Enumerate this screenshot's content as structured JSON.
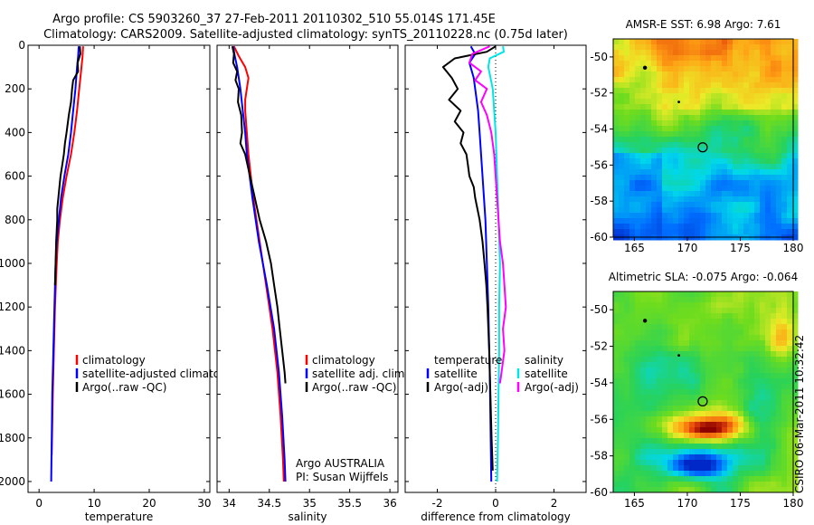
{
  "figure": {
    "title_line1": "Argo profile: CS 5903260_37 27-Feb-2011 20110302_510 55.014S 171.45E",
    "title_line2": "Climatology: CARS2009. Satellite-adjusted climatology: synTS_20110228.nc (0.75d later)",
    "stamp": "CSIRO 06-Mar-2011 10:32:42"
  },
  "colors": {
    "climatology": "#ff0000",
    "satellite": "#0000ff",
    "argo": "#000000",
    "sal_satellite": "#00e5e5",
    "sal_argo": "#ff00ff"
  },
  "chart_data": [
    {
      "type": "line",
      "id": "temperature",
      "xlabel": "temperature",
      "xlim": [
        -2,
        31
      ],
      "xticks": [
        0,
        10,
        20,
        30
      ],
      "ylim": [
        2050,
        0
      ],
      "yticks": [
        0,
        200,
        400,
        600,
        800,
        1000,
        1200,
        1400,
        1600,
        1800,
        2000
      ],
      "legend": [
        "climatology",
        "satellite-adjusted climatology",
        "Argo(..raw -QC)"
      ],
      "legend_position": "lower-center",
      "series": [
        {
          "name": "climatology",
          "color_key": "climatology",
          "depth": [
            5,
            50,
            100,
            200,
            300,
            400,
            500,
            600,
            700,
            800,
            900,
            1000,
            1200,
            1400,
            1600,
            1880
          ],
          "values": [
            8.0,
            7.9,
            7.7,
            7.3,
            6.9,
            6.4,
            5.8,
            5.0,
            4.3,
            3.8,
            3.4,
            3.2,
            2.9,
            2.7,
            2.5,
            2.3
          ]
        },
        {
          "name": "satellite-adjusted climatology",
          "color_key": "satellite",
          "depth": [
            5,
            50,
            100,
            200,
            300,
            400,
            500,
            600,
            700,
            800,
            900,
            1000,
            1200,
            1400,
            1600,
            2000
          ],
          "values": [
            7.2,
            7.1,
            6.9,
            6.6,
            6.2,
            5.8,
            5.3,
            4.6,
            4.0,
            3.6,
            3.2,
            3.0,
            2.8,
            2.6,
            2.4,
            2.2
          ]
        },
        {
          "name": "Argo(..raw -QC)",
          "color_key": "argo",
          "depth": [
            5,
            40,
            80,
            120,
            160,
            200,
            260,
            320,
            400,
            450,
            500,
            550,
            600,
            650,
            700,
            750,
            800,
            900,
            1000,
            1100
          ],
          "values": [
            7.4,
            7.5,
            7.0,
            7.1,
            6.2,
            6.0,
            5.8,
            5.4,
            5.0,
            4.7,
            4.5,
            4.2,
            3.9,
            3.7,
            3.5,
            3.3,
            3.3,
            3.1,
            3.0,
            2.9
          ]
        }
      ]
    },
    {
      "type": "line",
      "id": "salinity",
      "xlabel": "salinity",
      "xlim": [
        33.85,
        36.1
      ],
      "xticks": [
        34,
        34.5,
        35,
        35.5,
        36
      ],
      "xticklabels": [
        "34",
        "34.5",
        "35",
        "35.5",
        "36"
      ],
      "ylim": [
        2050,
        0
      ],
      "legend": [
        "climatology",
        "satellite adj. clim.",
        "Argo(..raw -QC)"
      ],
      "legend_position": "lower-right",
      "annotation": [
        "Argo AUSTRALIA",
        "PI: Susan Wijffels"
      ],
      "series": [
        {
          "name": "climatology",
          "color_key": "climatology",
          "depth": [
            5,
            50,
            100,
            150,
            200,
            250,
            300,
            400,
            500,
            700,
            900,
            1100,
            1300,
            1500,
            1700,
            1900,
            2000
          ],
          "values": [
            34.06,
            34.12,
            34.2,
            34.24,
            34.22,
            34.2,
            34.2,
            34.22,
            34.24,
            34.3,
            34.38,
            34.46,
            34.54,
            34.6,
            34.64,
            34.67,
            34.68
          ]
        },
        {
          "name": "satellite adj. clim.",
          "color_key": "satellite",
          "depth": [
            5,
            50,
            100,
            150,
            200,
            300,
            400,
            500,
            700,
            900,
            1100,
            1300,
            1500,
            1700,
            1900,
            2000
          ],
          "values": [
            34.05,
            34.07,
            34.1,
            34.12,
            34.14,
            34.17,
            34.2,
            34.22,
            34.29,
            34.37,
            34.47,
            34.56,
            34.62,
            34.66,
            34.69,
            34.7
          ]
        },
        {
          "name": "Argo(..raw -QC)",
          "color_key": "argo",
          "depth": [
            5,
            40,
            80,
            120,
            160,
            200,
            260,
            320,
            400,
            450,
            500,
            600,
            700,
            800,
            900,
            1000,
            1100,
            1200,
            1300,
            1400,
            1500,
            1550
          ],
          "values": [
            34.04,
            34.06,
            34.05,
            34.1,
            34.08,
            34.12,
            34.11,
            34.15,
            34.16,
            34.14,
            34.2,
            34.26,
            34.32,
            34.38,
            34.46,
            34.52,
            34.56,
            34.6,
            34.63,
            34.66,
            34.69,
            34.7
          ]
        }
      ]
    },
    {
      "type": "line",
      "id": "difference",
      "xlabel": "difference from climatology",
      "xlim": [
        -3.1,
        3.1
      ],
      "xticks": [
        -2,
        0,
        2
      ],
      "ylim": [
        2050,
        0
      ],
      "zero_line": true,
      "legend": [
        "temperature",
        "satellite",
        "Argo(-adj)",
        "salinity",
        "satellite",
        "Argo(-adj)"
      ],
      "legend_position": "lower",
      "series": [
        {
          "name": "temperature satellite",
          "color_key": "satellite",
          "depth": [
            5,
            40,
            80,
            150,
            200,
            300,
            400,
            500,
            600,
            700,
            800,
            1000,
            1200,
            1500,
            2000
          ],
          "values": [
            -0.85,
            -0.7,
            -0.9,
            -0.75,
            -0.7,
            -0.6,
            -0.55,
            -0.5,
            -0.45,
            -0.4,
            -0.35,
            -0.3,
            -0.25,
            -0.2,
            -0.15
          ]
        },
        {
          "name": "temperature Argo(-adj)",
          "color_key": "argo",
          "depth": [
            5,
            30,
            60,
            100,
            150,
            200,
            250,
            300,
            350,
            400,
            450,
            500,
            550,
            600,
            650,
            700,
            800,
            900,
            1000,
            1100,
            1200,
            1400,
            1600,
            1800,
            1950
          ],
          "values": [
            0.0,
            -0.3,
            -1.4,
            -1.8,
            -1.5,
            -1.3,
            -1.6,
            -1.2,
            -1.4,
            -1.1,
            -1.2,
            -1.0,
            -0.95,
            -0.9,
            -0.75,
            -0.7,
            -0.55,
            -0.45,
            -0.38,
            -0.32,
            -0.28,
            -0.22,
            -0.18,
            -0.14,
            -0.1
          ]
        },
        {
          "name": "salinity satellite",
          "color_key": "sal_satellite",
          "depth": [
            5,
            30,
            60,
            100,
            200,
            300,
            400,
            600,
            800,
            1000,
            1200,
            1400,
            1600,
            1800,
            2000
          ],
          "values": [
            0.25,
            0.28,
            -0.2,
            -0.25,
            -0.1,
            -0.05,
            0.0,
            0.05,
            0.1,
            0.15,
            0.12,
            0.12,
            0.1,
            0.08,
            0.05
          ]
        },
        {
          "name": "salinity Argo(-adj)",
          "color_key": "sal_argo",
          "depth": [
            5,
            40,
            80,
            120,
            160,
            200,
            260,
            320,
            400,
            500,
            600,
            700,
            800,
            900,
            1000,
            1100,
            1200,
            1300,
            1400,
            1500,
            1550
          ],
          "values": [
            -0.2,
            -0.8,
            -0.9,
            -0.5,
            -0.7,
            -0.3,
            -0.5,
            -0.3,
            -0.15,
            -0.05,
            0.0,
            0.05,
            0.1,
            0.15,
            0.25,
            0.3,
            0.35,
            0.25,
            0.3,
            0.2,
            0.15
          ]
        }
      ]
    },
    {
      "type": "heatmap",
      "id": "sst_map",
      "title": "AMSR-E SST: 6.98 Argo: 7.61",
      "xlim": [
        163,
        180
      ],
      "xticks": [
        165,
        170,
        175,
        180
      ],
      "ylim": [
        -60,
        -49
      ],
      "yticks": [
        -50,
        -52,
        -54,
        -56,
        -58,
        -60
      ],
      "marker": {
        "lon": 171.45,
        "lat": -55.014
      }
    },
    {
      "type": "heatmap",
      "id": "sla_map",
      "title": "Altimetric SLA: -0.075 Argo: -0.064",
      "xlim": [
        163,
        180
      ],
      "xticks": [
        165,
        170,
        175,
        180
      ],
      "ylim": [
        -60,
        -49
      ],
      "yticks": [
        -50,
        -52,
        -54,
        -56,
        -58,
        -60
      ],
      "marker": {
        "lon": 171.45,
        "lat": -55.014
      }
    }
  ]
}
